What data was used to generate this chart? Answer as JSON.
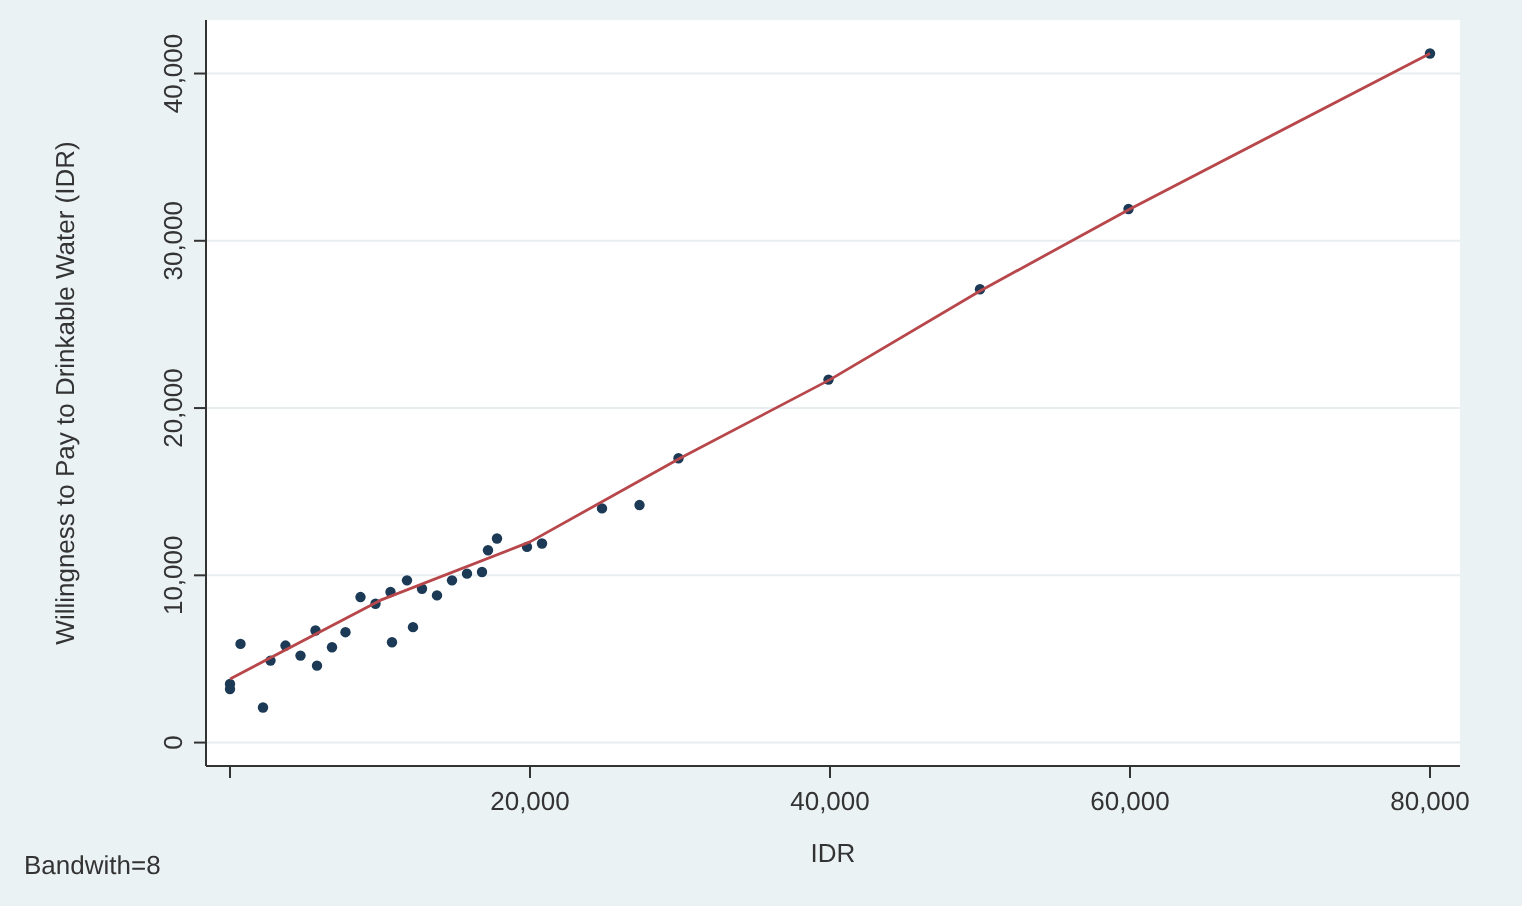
{
  "chart_data": {
    "type": "scatter",
    "xlabel": "IDR",
    "ylabel": "Willingness to Pay to Drinkable Water (IDR)",
    "annotations": [
      "Bandwith=8"
    ],
    "xlim": [
      -1600,
      82000
    ],
    "ylim": [
      -1400,
      43200
    ],
    "xticks": [
      {
        "value": 0,
        "label": null
      },
      {
        "value": 20000,
        "label": "20,000"
      },
      {
        "value": 40000,
        "label": "40,000"
      },
      {
        "value": 60000,
        "label": "60,000"
      },
      {
        "value": 80000,
        "label": "80,000"
      }
    ],
    "yticks": [
      0,
      {
        "value": 10000,
        "label": "10,000"
      },
      {
        "value": 20000,
        "label": "20,000"
      },
      {
        "value": 30000,
        "label": "30,000"
      },
      {
        "value": 40000,
        "label": "40,000"
      }
    ],
    "grid": "y",
    "marker": "circle",
    "series": [
      {
        "color": "#1c3a56",
        "x": [
          0,
          0,
          700,
          2200,
          2700,
          3700,
          4700,
          5700,
          5800,
          6800,
          7700,
          8700,
          9700,
          10700,
          10800,
          11800,
          12200,
          12800,
          13800,
          14800,
          15800,
          16800,
          17200,
          17800,
          19800,
          20800,
          24800,
          27300,
          29900,
          39900,
          50000,
          59900,
          80000
        ],
        "values": [
          3200,
          3500,
          5900,
          2100,
          4900,
          5800,
          5200,
          6700,
          4600,
          5700,
          6600,
          8700,
          8300,
          9000,
          6000,
          9700,
          6900,
          9200,
          8800,
          9700,
          10100,
          10200,
          11500,
          12200,
          11700,
          11900,
          14000,
          14200,
          17000,
          21700,
          27100,
          31900,
          41200
        ]
      },
      {
        "type": "line",
        "color": "#b8474b",
        "marker": "none",
        "x": [
          0,
          10000,
          20000,
          30000,
          40000,
          50000,
          60000,
          80000
        ],
        "values": [
          3800,
          8500,
          12000,
          17000,
          21700,
          27000,
          31900,
          41200
        ]
      }
    ]
  }
}
